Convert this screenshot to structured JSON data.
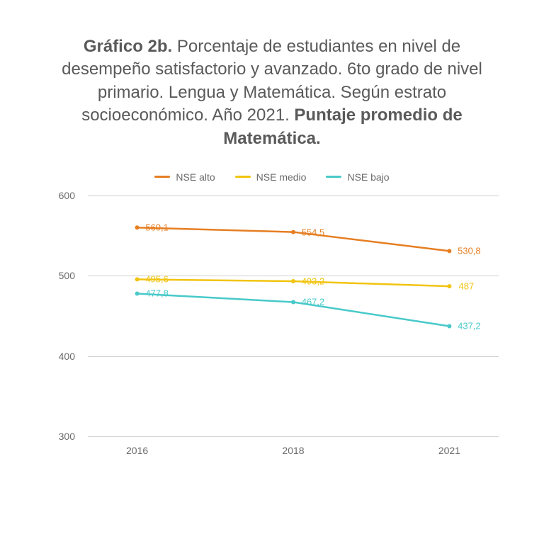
{
  "title": {
    "prefix_bold": "Gráfico 2b.",
    "body": " Porcentaje de estudiantes en nivel de desempeño satisfactorio y avanzado. 6to grado de nivel primario. Lengua y Matemática. Según estrato socioeconómico. Año 2021. ",
    "suffix_bold": "Puntaje promedio de Matemática."
  },
  "chart": {
    "type": "line",
    "background_color": "#ffffff",
    "grid_color": "#d0d0d0",
    "text_color": "#6a6a6a",
    "title_fontsize": 24,
    "axis_fontsize": 14,
    "label_fontsize": 13,
    "line_width": 2.5,
    "marker_radius": 3,
    "x": {
      "categories": [
        "2016",
        "2018",
        "2021"
      ],
      "positions_pct": [
        12,
        50,
        88
      ]
    },
    "y": {
      "min": 300,
      "max": 600,
      "ticks": [
        300,
        400,
        500,
        600
      ]
    },
    "series": [
      {
        "name": "NSE alto",
        "color": "#e67e22",
        "values": [
          560.1,
          554.5,
          530.8
        ],
        "labels": [
          "560,1",
          "554,5",
          "530,8"
        ],
        "label_dx": [
          28,
          28,
          28
        ],
        "label_dy": [
          0,
          0,
          0
        ]
      },
      {
        "name": "NSE medio",
        "color": "#f1c40f",
        "values": [
          495.6,
          493.2,
          487
        ],
        "labels": [
          "495,6",
          "493,2",
          "487"
        ],
        "label_dx": [
          28,
          28,
          24
        ],
        "label_dy": [
          0,
          0,
          0
        ]
      },
      {
        "name": "NSE bajo",
        "color": "#48c9c9",
        "values": [
          477.8,
          467.2,
          437.2
        ],
        "labels": [
          "477,8",
          "467,2",
          "437,2"
        ],
        "label_dx": [
          28,
          28,
          28
        ],
        "label_dy": [
          0,
          0,
          0
        ]
      }
    ],
    "legend": {
      "position": "top",
      "items": [
        "NSE alto",
        "NSE medio",
        "NSE bajo"
      ]
    }
  }
}
